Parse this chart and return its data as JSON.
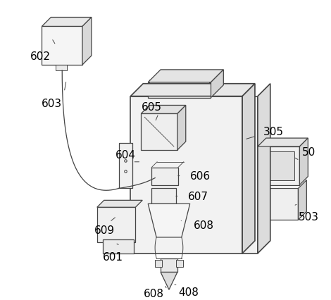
{
  "background_color": "#ffffff",
  "line_color": "#444444",
  "label_color": "#000000",
  "figure_width": 4.7,
  "figure_height": 4.27,
  "dpi": 100
}
